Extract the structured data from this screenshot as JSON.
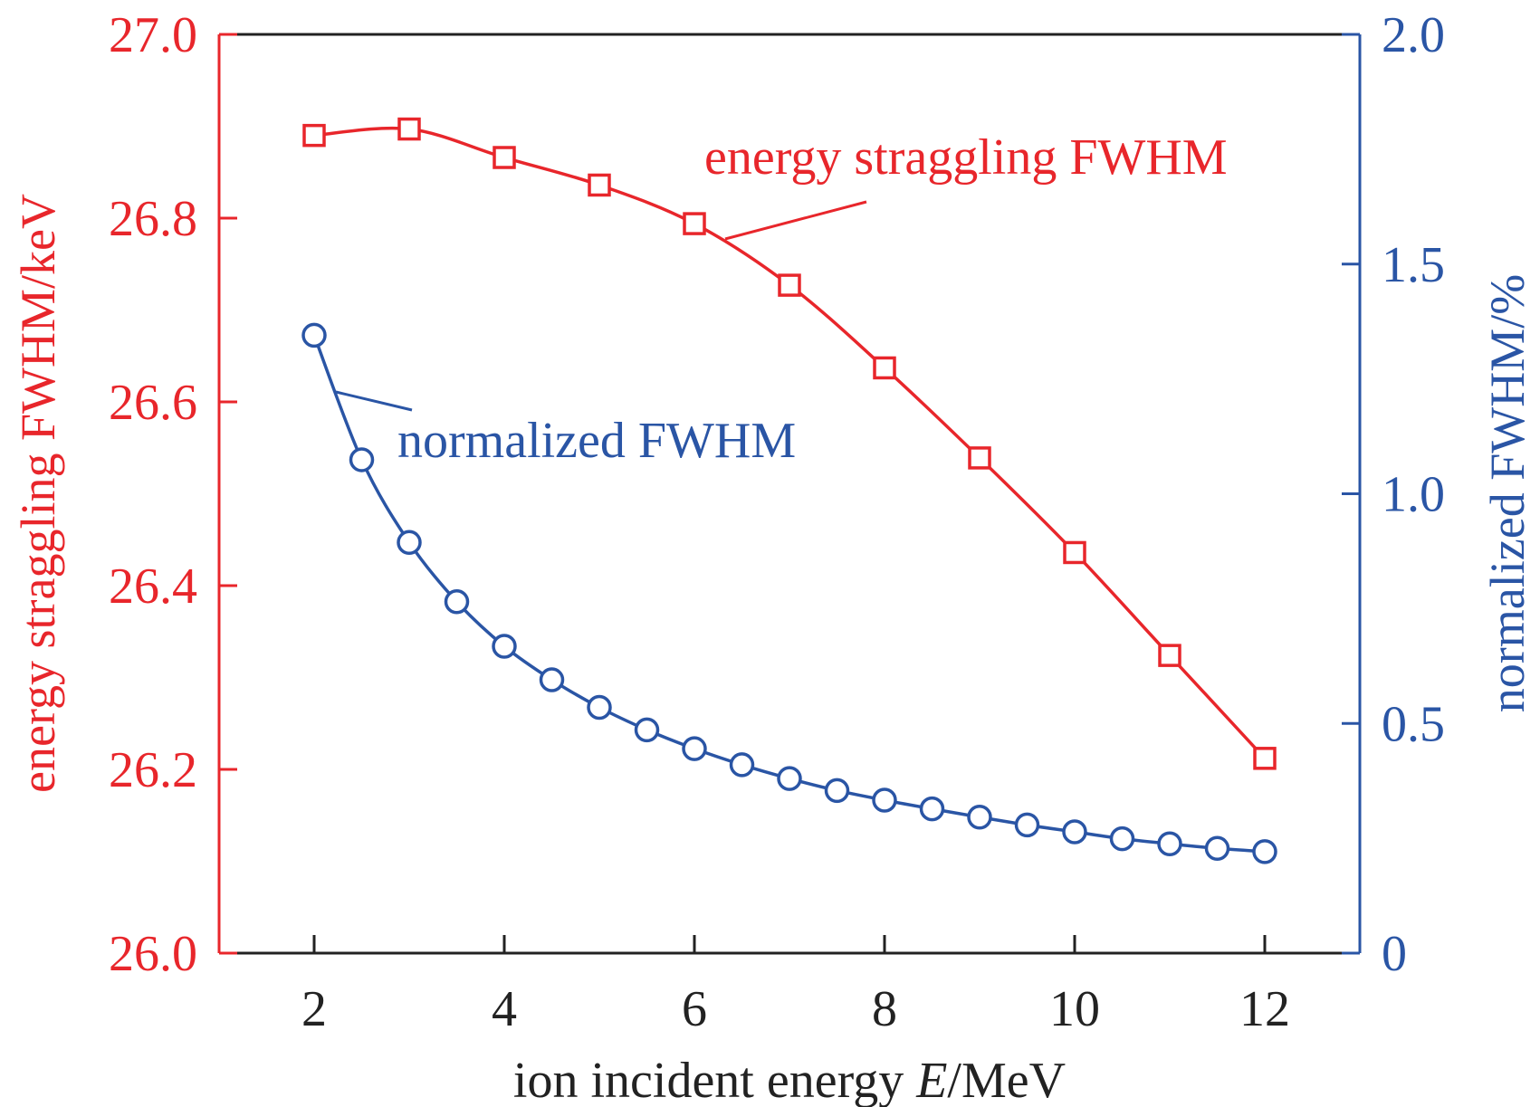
{
  "chart_data": {
    "type": "line",
    "xlabel_prefix": "ion incident energy ",
    "xlabel_var": "E",
    "xlabel_unit": "/MeV",
    "ylabel_left": "energy straggling FWHM/keV",
    "ylabel_right": "normalized FWHM/%",
    "xlim": [
      1.0,
      13.0
    ],
    "ylim_left": [
      26.0,
      27.0
    ],
    "ylim_right": [
      0,
      2.0
    ],
    "xticks": [
      "2",
      "4",
      "6",
      "8",
      "10",
      "12"
    ],
    "yticks_left": [
      "26.0",
      "26.2",
      "26.4",
      "26.6",
      "26.8",
      "27.0"
    ],
    "yticks_right": [
      "0",
      "0.5",
      "1.0",
      "1.5",
      "2.0"
    ],
    "grid": false,
    "series": [
      {
        "name": "energy straggling FWHM",
        "axis": "left",
        "marker": "square",
        "color": "#e8262b",
        "x": [
          2,
          3,
          4,
          5,
          6,
          7,
          8,
          9,
          10,
          11,
          12
        ],
        "y": [
          26.89,
          26.897,
          26.866,
          26.836,
          26.794,
          26.727,
          26.637,
          26.539,
          26.436,
          26.324,
          26.212
        ]
      },
      {
        "name": "normalized FWHM",
        "axis": "right",
        "marker": "circle",
        "color": "#2a55a5",
        "x": [
          2,
          2.5,
          3,
          3.5,
          4,
          4.5,
          5,
          5.5,
          6,
          6.5,
          7,
          7.5,
          8,
          8.5,
          9,
          9.5,
          10,
          10.5,
          11,
          11.5,
          12
        ],
        "y": [
          1.345,
          1.074,
          0.894,
          0.765,
          0.668,
          0.595,
          0.535,
          0.486,
          0.445,
          0.41,
          0.38,
          0.354,
          0.333,
          0.314,
          0.296,
          0.279,
          0.264,
          0.249,
          0.238,
          0.228,
          0.221
        ]
      }
    ]
  }
}
